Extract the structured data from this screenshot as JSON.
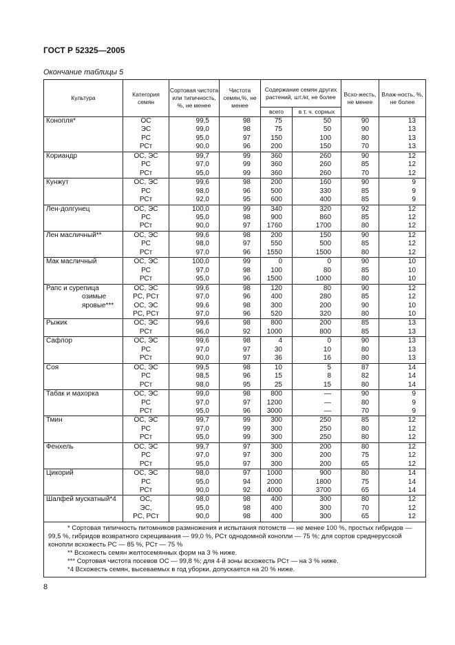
{
  "header": {
    "title": "ГОСТ Р 52325—2005"
  },
  "caption": "Окончание таблицы 5",
  "table": {
    "head": {
      "crop": "Культура",
      "category": "Категория семян",
      "variety": "Сортовая чистота или типичность, %, не менее",
      "purity": "Чистота семян,%, не менее",
      "other": "Содержание семян других растений, шт./кг, не более",
      "total": "всего",
      "weeds": "в т. ч. сорных",
      "germination": "Всхо-жесть, не менее",
      "moisture": "Влаж-ность, %, не более"
    },
    "groups": [
      {
        "crop": [
          "Конопля*"
        ],
        "rows": [
          [
            "ОС",
            "99,5",
            "98",
            "75",
            "50",
            "90",
            "13"
          ],
          [
            "ЭС",
            "99,0",
            "98",
            "75",
            "50",
            "90",
            "13"
          ],
          [
            "РС",
            "95,0",
            "97",
            "150",
            "100",
            "80",
            "13"
          ],
          [
            "РСт",
            "90,0",
            "96",
            "200",
            "150",
            "70",
            "13"
          ]
        ]
      },
      {
        "crop": [
          "Кориандр"
        ],
        "rows": [
          [
            "ОС, ЭС",
            "99,7",
            "99",
            "360",
            "260",
            "90",
            "12"
          ],
          [
            "РС",
            "97,0",
            "99",
            "360",
            "260",
            "85",
            "12"
          ],
          [
            "РСт",
            "95,0",
            "99",
            "360",
            "260",
            "70",
            "12"
          ]
        ]
      },
      {
        "crop": [
          "Кунжут"
        ],
        "rows": [
          [
            "ОС, ЭС",
            "99,6",
            "98",
            "200",
            "160",
            "90",
            "9"
          ],
          [
            "РС",
            "98,0",
            "96",
            "500",
            "330",
            "85",
            "9"
          ],
          [
            "РСт",
            "92,0",
            "95",
            "600",
            "400",
            "85",
            "9"
          ]
        ]
      },
      {
        "crop": [
          "Лен-долгунец"
        ],
        "rows": [
          [
            "ОС, ЭС",
            "100,0",
            "99",
            "340",
            "320",
            "92",
            "12"
          ],
          [
            "РС",
            "95,0",
            "98",
            "900",
            "860",
            "85",
            "12"
          ],
          [
            "РСт",
            "90,0",
            "97",
            "1760",
            "1700",
            "80",
            "12"
          ]
        ]
      },
      {
        "crop": [
          "Лен масличный**"
        ],
        "rows": [
          [
            "ОС, ЭС",
            "99,6",
            "98",
            "200",
            "150",
            "90",
            "12"
          ],
          [
            "РС",
            "98,0",
            "97",
            "550",
            "500",
            "85",
            "12"
          ],
          [
            "РСт",
            "97,0",
            "96",
            "1550",
            "1500",
            "80",
            "12"
          ]
        ]
      },
      {
        "crop": [
          "Мак масличный"
        ],
        "rows": [
          [
            "ОС, ЭС",
            "100,0",
            "99",
            "0",
            "0",
            "90",
            "10"
          ],
          [
            "РС",
            "97,0",
            "98",
            "100",
            "80",
            "85",
            "10"
          ],
          [
            "РСт",
            "95,0",
            "96",
            "1500",
            "1000",
            "80",
            "10"
          ]
        ]
      },
      {
        "crop": [
          "Рапс и сурепица",
          "озимые",
          "яровые***"
        ],
        "rows": [
          [
            "ОС, ЭС",
            "99,6",
            "98",
            "120",
            "80",
            "90",
            "12"
          ],
          [
            "РС, РСт",
            "97,0",
            "96",
            "400",
            "280",
            "85",
            "12"
          ],
          [
            "ОС, ЭС",
            "99,6",
            "98",
            "300",
            "200",
            "90",
            "10"
          ],
          [
            "РС, РСт",
            "97,0",
            "96",
            "520",
            "320",
            "80",
            "10"
          ]
        ]
      },
      {
        "crop": [
          "Рыжик"
        ],
        "rows": [
          [
            "ОС, ЭС",
            "99,6",
            "98",
            "800",
            "200",
            "85",
            "13"
          ],
          [
            "РСт",
            "96,0",
            "92",
            "1000",
            "800",
            "85",
            "13"
          ]
        ]
      },
      {
        "crop": [
          "Сафлор"
        ],
        "rows": [
          [
            "ОС, ЭС",
            "99,6",
            "98",
            "4",
            "0",
            "90",
            "13"
          ],
          [
            "РС",
            "97,0",
            "97",
            "30",
            "10",
            "80",
            "13"
          ],
          [
            "РСт",
            "90,0",
            "97",
            "36",
            "16",
            "80",
            "13"
          ]
        ]
      },
      {
        "crop": [
          "Соя"
        ],
        "rows": [
          [
            "ОС, ЭС",
            "99,5",
            "98",
            "10",
            "5",
            "87",
            "14"
          ],
          [
            "РС",
            "98,5",
            "96",
            "15",
            "8",
            "82",
            "14"
          ],
          [
            "РСт",
            "98,0",
            "95",
            "25",
            "15",
            "80",
            "14"
          ]
        ]
      },
      {
        "crop": [
          "Табак и махорка"
        ],
        "rows": [
          [
            "ОС, ЭС",
            "99,0",
            "98",
            "800",
            "—",
            "90",
            "9"
          ],
          [
            "РС",
            "97,0",
            "97",
            "1200",
            "—",
            "80",
            "9"
          ],
          [
            "РСт",
            "95,0",
            "96",
            "3000",
            "—",
            "70",
            "9"
          ]
        ]
      },
      {
        "crop": [
          "Тмин"
        ],
        "rows": [
          [
            "ОС, ЭС",
            "99,7",
            "99",
            "300",
            "250",
            "85",
            "12"
          ],
          [
            "РС",
            "97,0",
            "99",
            "300",
            "250",
            "80",
            "12"
          ],
          [
            "РСт",
            "95,0",
            "99",
            "300",
            "250",
            "80",
            "12"
          ]
        ]
      },
      {
        "crop": [
          "Фенхель"
        ],
        "rows": [
          [
            "ОС, ЭС",
            "99,7",
            "97",
            "300",
            "200",
            "80",
            "12"
          ],
          [
            "РС",
            "97,0",
            "97",
            "300",
            "200",
            "75",
            "12"
          ],
          [
            "РСт",
            "95,0",
            "97",
            "300",
            "200",
            "65",
            "12"
          ]
        ]
      },
      {
        "crop": [
          "Цикорий"
        ],
        "rows": [
          [
            "ОС, ЭС",
            "98,0",
            "97",
            "1000",
            "900",
            "80",
            "14"
          ],
          [
            "РС",
            "95,0",
            "94",
            "2000",
            "1800",
            "75",
            "14"
          ],
          [
            "РСт",
            "90,0",
            "92",
            "4000",
            "3700",
            "65",
            "14"
          ]
        ]
      },
      {
        "crop": [
          "Шалфей мускатный*4"
        ],
        "rows": [
          [
            "ОС,",
            "98,0",
            "98",
            "400",
            "300",
            "80",
            "12"
          ],
          [
            "ЭС,",
            "95,0",
            "98",
            "400",
            "300",
            "70",
            "12"
          ],
          [
            "РС, РСт",
            "90,0",
            "98",
            "400",
            "300",
            "65",
            "12"
          ]
        ]
      }
    ],
    "notes": [
      "* Сортовая типичность питомников размножения и испытания потомств — не менее 100 %, простых гибридов — 99,5 %, гибридов возвратного скрещивания — 99,0 %, РСт однодомной конопли — 75 %; для сортов среднерусской конопли всхожесть РС — 85 %, РСт — 75 %",
      "** Всхожесть семян желтосемянных форм на 3 % ниже.",
      "*** Сортовая чистота посевов ОС — 99,8 %; для 4-й зоны всхожесть РСт — на 3 % ниже.",
      "*4 Всхожесть семян, высеваемых в год уборки, допускается на 20 % ниже."
    ]
  },
  "footer": {
    "page": "8"
  }
}
